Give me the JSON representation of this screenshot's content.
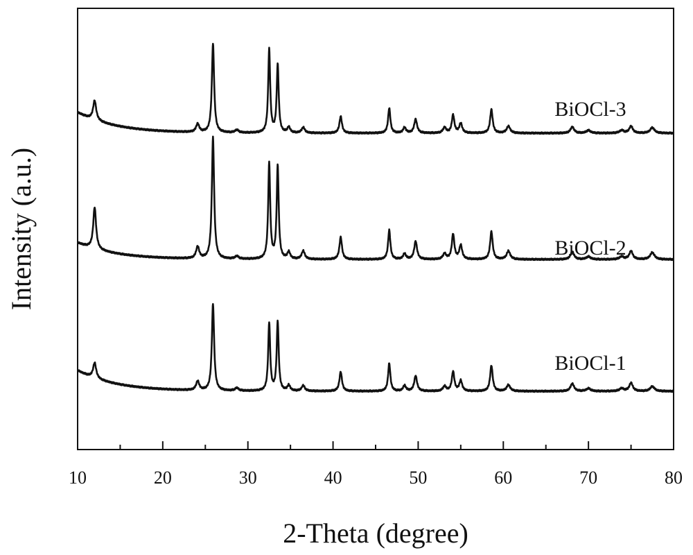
{
  "chart_data": {
    "type": "line",
    "title": "",
    "xlabel": "2-Theta (degree)",
    "ylabel": "Intensity (a.u.)",
    "xlim": [
      10,
      80
    ],
    "xticks": [
      10,
      20,
      30,
      40,
      50,
      60,
      70,
      80
    ],
    "x_minor_tick_step": 5,
    "y_ticks_shown": false,
    "grid": false,
    "legend": "none",
    "line_color": "#111111",
    "series": [
      {
        "name": "BiOCl-1",
        "offset": 0,
        "baseline": 8,
        "low_angle_hump": {
          "amplitude": 30,
          "decay": 4.5
        },
        "peaks": [
          [
            12.0,
            22,
            0.22
          ],
          [
            24.1,
            13,
            0.22
          ],
          [
            25.9,
            125,
            0.16
          ],
          [
            28.7,
            4,
            0.25
          ],
          [
            32.5,
            98,
            0.14
          ],
          [
            33.5,
            100,
            0.14
          ],
          [
            34.8,
            8,
            0.2
          ],
          [
            36.5,
            8,
            0.22
          ],
          [
            40.9,
            28,
            0.18
          ],
          [
            46.6,
            40,
            0.16
          ],
          [
            48.4,
            8,
            0.2
          ],
          [
            49.7,
            22,
            0.2
          ],
          [
            53.1,
            7,
            0.22
          ],
          [
            54.1,
            28,
            0.18
          ],
          [
            55.0,
            15,
            0.2
          ],
          [
            58.6,
            37,
            0.18
          ],
          [
            60.6,
            9,
            0.25
          ],
          [
            68.1,
            11,
            0.25
          ],
          [
            70.0,
            4,
            0.3
          ],
          [
            73.9,
            4,
            0.3
          ],
          [
            75.0,
            12,
            0.25
          ],
          [
            77.5,
            7,
            0.3
          ]
        ]
      },
      {
        "name": "BiOCl-2",
        "offset": 190,
        "baseline": 8,
        "low_angle_hump": {
          "amplitude": 24,
          "decay": 4.5
        },
        "peaks": [
          [
            12.0,
            60,
            0.2
          ],
          [
            24.1,
            17,
            0.22
          ],
          [
            25.9,
            175,
            0.16
          ],
          [
            28.7,
            4,
            0.25
          ],
          [
            32.5,
            138,
            0.14
          ],
          [
            33.5,
            134,
            0.14
          ],
          [
            34.8,
            10,
            0.2
          ],
          [
            36.5,
            12,
            0.22
          ],
          [
            40.9,
            32,
            0.18
          ],
          [
            46.6,
            42,
            0.16
          ],
          [
            48.4,
            8,
            0.2
          ],
          [
            49.7,
            26,
            0.2
          ],
          [
            53.1,
            8,
            0.22
          ],
          [
            54.1,
            36,
            0.18
          ],
          [
            55.0,
            20,
            0.2
          ],
          [
            58.6,
            40,
            0.18
          ],
          [
            60.6,
            12,
            0.25
          ],
          [
            68.1,
            11,
            0.25
          ],
          [
            70.0,
            4,
            0.3
          ],
          [
            73.9,
            4,
            0.3
          ],
          [
            75.0,
            12,
            0.25
          ],
          [
            77.5,
            10,
            0.3
          ]
        ]
      },
      {
        "name": "BiOCl-3",
        "offset": 372,
        "baseline": 8,
        "low_angle_hump": {
          "amplitude": 30,
          "decay": 4.5
        },
        "peaks": [
          [
            12.0,
            28,
            0.22
          ],
          [
            24.1,
            12,
            0.22
          ],
          [
            25.9,
            128,
            0.16
          ],
          [
            28.7,
            4,
            0.25
          ],
          [
            32.5,
            120,
            0.14
          ],
          [
            33.5,
            98,
            0.14
          ],
          [
            34.8,
            8,
            0.2
          ],
          [
            36.5,
            8,
            0.22
          ],
          [
            40.9,
            24,
            0.18
          ],
          [
            46.6,
            36,
            0.16
          ],
          [
            48.4,
            8,
            0.2
          ],
          [
            49.7,
            20,
            0.2
          ],
          [
            53.1,
            8,
            0.22
          ],
          [
            54.1,
            26,
            0.18
          ],
          [
            55.0,
            14,
            0.2
          ],
          [
            58.6,
            34,
            0.18
          ],
          [
            60.6,
            10,
            0.25
          ],
          [
            68.1,
            9,
            0.25
          ],
          [
            70.0,
            4,
            0.3
          ],
          [
            73.9,
            4,
            0.3
          ],
          [
            75.0,
            10,
            0.25
          ],
          [
            77.5,
            8,
            0.3
          ]
        ]
      }
    ]
  }
}
